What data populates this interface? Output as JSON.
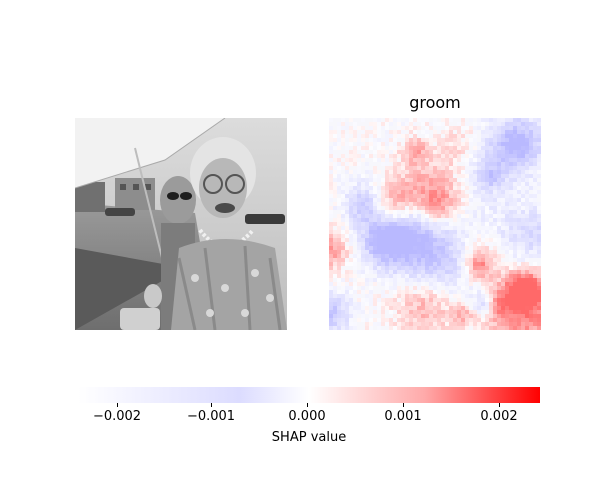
{
  "chart_data": {
    "type": "heatmap",
    "panels": [
      {
        "kind": "image",
        "description": "grayscale input photograph"
      },
      {
        "kind": "shap-heatmap",
        "title": "groom"
      }
    ],
    "colorbar": {
      "label": "SHAP value",
      "range": [
        -0.0024,
        0.0024
      ],
      "ticks": [
        -0.002,
        -0.001,
        0.0,
        0.001,
        0.002
      ],
      "tick_labels": [
        "−0.002",
        "−0.001",
        "0.000",
        "0.001",
        "0.002"
      ],
      "colors": {
        "negative": "#0000ff",
        "neutral": "#ffffff",
        "positive": "#ff0000"
      }
    }
  }
}
